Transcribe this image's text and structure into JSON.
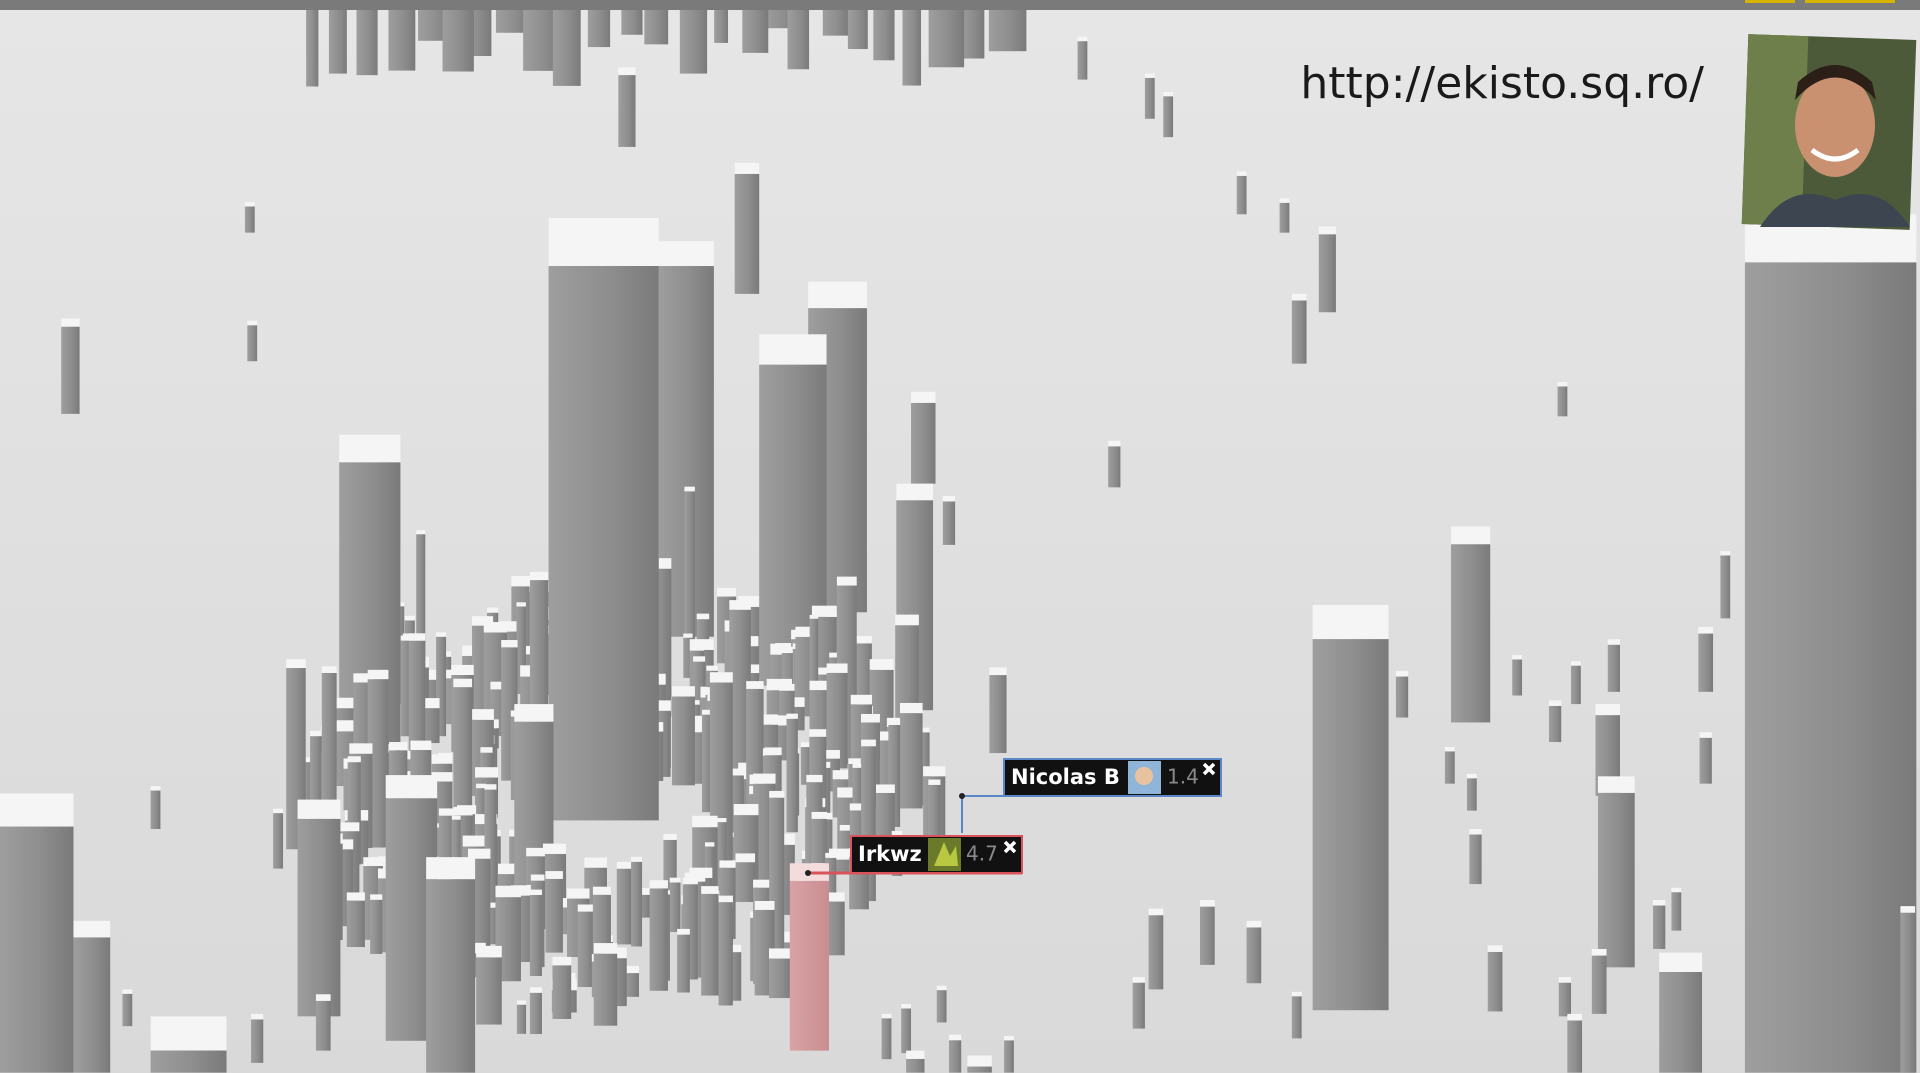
{
  "header": {
    "url": "http://ekisto.sq.ro/"
  },
  "tags": [
    {
      "name": "Nicolas B",
      "score": "1.4"
    },
    {
      "name": "Irkwz",
      "score": "4.7"
    }
  ]
}
